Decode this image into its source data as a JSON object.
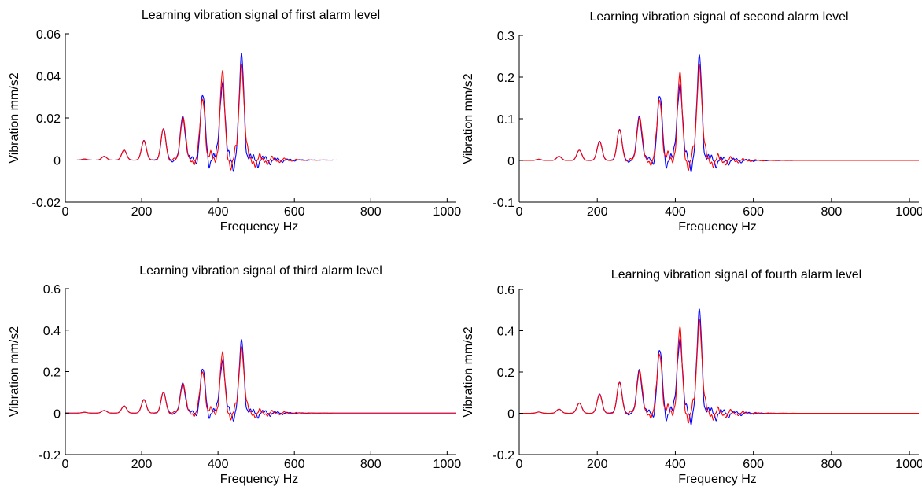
{
  "colors": {
    "series_primary": "#0000ff",
    "series_secondary": "#ff0000",
    "axes": "#000000",
    "background": "#ffffff"
  },
  "chart_data": [
    {
      "type": "line",
      "title": "Learning vibration signal of first alarm level",
      "xlabel": "Frequency Hz",
      "ylabel": "Vibration mm/s2",
      "xlim": [
        0,
        1024
      ],
      "ylim": [
        -0.02,
        0.06
      ],
      "xticks": [
        0,
        200,
        400,
        600,
        800,
        1000
      ],
      "xtick_labels": [
        "0",
        "200",
        "400",
        "600",
        "800",
        "1000"
      ],
      "yticks": [
        -0.02,
        0,
        0.02,
        0.04,
        0.06
      ],
      "ytick_labels": [
        "-0.02",
        "0",
        "0.02",
        "0.04",
        "0.06"
      ],
      "grid": false,
      "peaks": {
        "x": [
          50,
          102,
          154,
          206,
          257,
          308,
          360,
          411,
          462
        ],
        "y": [
          0.0005,
          0.0018,
          0.0048,
          0.0093,
          0.0148,
          0.0212,
          0.0298,
          0.0392,
          0.0478
        ]
      },
      "series": [
        {
          "color": "#0000ff"
        },
        {
          "color": "#ff0000"
        }
      ]
    },
    {
      "type": "line",
      "title": "Learning vibration signal of second alarm level",
      "xlabel": "Frequency Hz",
      "ylabel": "Vibration mm/s2",
      "xlim": [
        0,
        1024
      ],
      "ylim": [
        -0.1,
        0.3
      ],
      "xticks": [
        0,
        200,
        400,
        600,
        800,
        1000
      ],
      "xtick_labels": [
        "0",
        "200",
        "400",
        "600",
        "800",
        "1000"
      ],
      "yticks": [
        -0.1,
        0,
        0.1,
        0.2,
        0.3
      ],
      "ytick_labels": [
        "-0.1",
        "0",
        "0.1",
        "0.2",
        "0.3"
      ],
      "grid": false,
      "peaks": {
        "x": [
          50,
          102,
          154,
          206,
          257,
          308,
          360,
          411,
          462
        ],
        "y": [
          0.003,
          0.01,
          0.025,
          0.046,
          0.074,
          0.108,
          0.149,
          0.195,
          0.24
        ]
      },
      "series": [
        {
          "color": "#0000ff"
        },
        {
          "color": "#ff0000"
        }
      ]
    },
    {
      "type": "line",
      "title": "Learning vibration signal of third alarm level",
      "xlabel": "Frequency Hz",
      "ylabel": "Vibration mm/s2",
      "xlim": [
        0,
        1024
      ],
      "ylim": [
        -0.2,
        0.6
      ],
      "xticks": [
        0,
        200,
        400,
        600,
        800,
        1000
      ],
      "xtick_labels": [
        "0",
        "200",
        "400",
        "600",
        "800",
        "1000"
      ],
      "yticks": [
        -0.2,
        0,
        0.2,
        0.4,
        0.6
      ],
      "ytick_labels": [
        "-0.2",
        "0",
        "0.2",
        "0.4",
        "0.6"
      ],
      "grid": false,
      "peaks": {
        "x": [
          50,
          102,
          154,
          206,
          257,
          308,
          360,
          411,
          462
        ],
        "y": [
          0.004,
          0.013,
          0.035,
          0.065,
          0.1,
          0.148,
          0.205,
          0.27,
          0.335
        ]
      },
      "series": [
        {
          "color": "#0000ff"
        },
        {
          "color": "#ff0000"
        }
      ]
    },
    {
      "type": "line",
      "title": "Learning vibration signal of fourth alarm level",
      "xlabel": "Frequency Hz",
      "ylabel": "Vibration mm/s2",
      "xlim": [
        0,
        1024
      ],
      "ylim": [
        -0.2,
        0.6
      ],
      "xticks": [
        0,
        200,
        400,
        600,
        800,
        1000
      ],
      "xtick_labels": [
        "0",
        "200",
        "400",
        "600",
        "800",
        "1000"
      ],
      "yticks": [
        -0.2,
        0,
        0.2,
        0.4,
        0.6
      ],
      "ytick_labels": [
        "-0.2",
        "0",
        "0.2",
        "0.4",
        "0.6"
      ],
      "grid": false,
      "peaks": {
        "x": [
          50,
          102,
          154,
          206,
          257,
          308,
          360,
          411,
          462
        ],
        "y": [
          0.006,
          0.02,
          0.05,
          0.093,
          0.15,
          0.215,
          0.295,
          0.385,
          0.478
        ]
      },
      "series": [
        {
          "color": "#0000ff"
        },
        {
          "color": "#ff0000"
        }
      ]
    }
  ]
}
